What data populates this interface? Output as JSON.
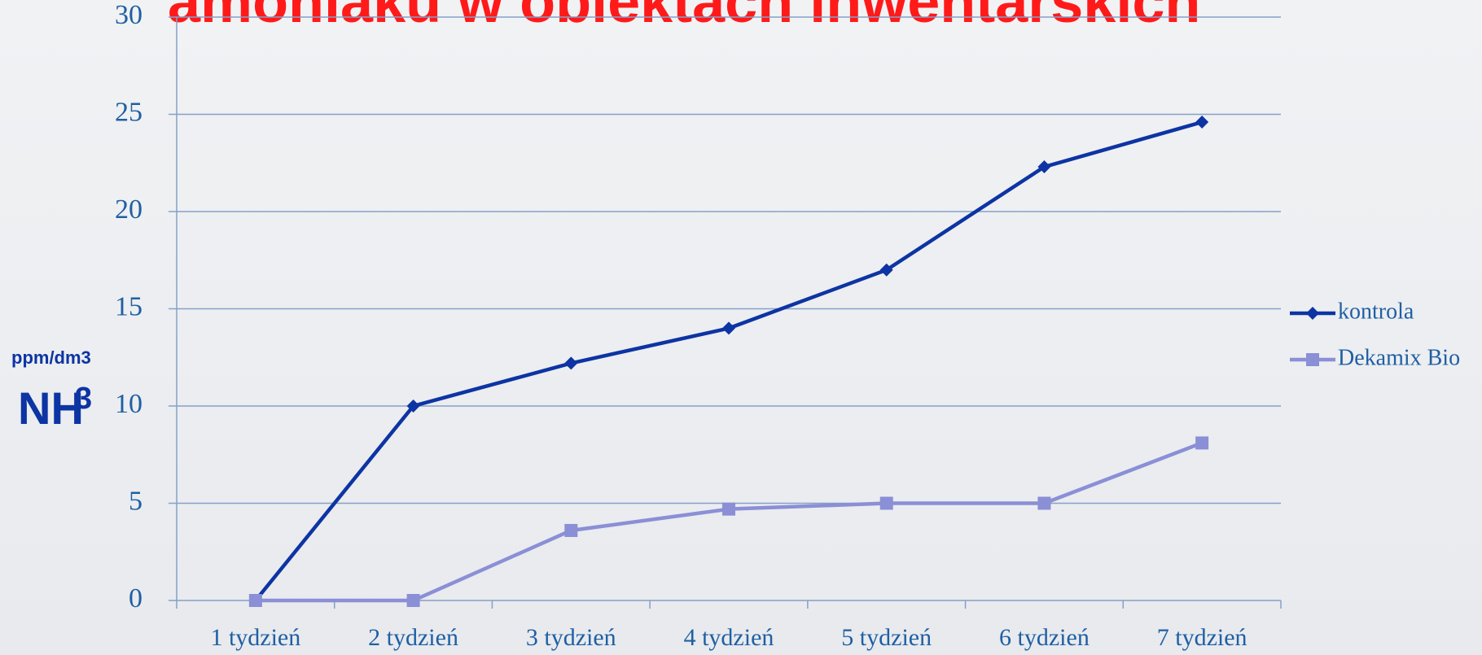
{
  "chart_data": {
    "type": "line",
    "title": "amoniaku w obiektach inwentarskich",
    "ylabel": "ppm/dm3",
    "unit": {
      "base": "NH",
      "sup": "3"
    },
    "categories": [
      "1 tydzień",
      "2 tydzień",
      "3 tydzień",
      "4 tydzień",
      "5 tydzień",
      "6 tydzień",
      "7 tydzień"
    ],
    "series": [
      {
        "name": "kontrola",
        "color": "#0d34a3",
        "marker": "diamond",
        "values": [
          0,
          10,
          12.2,
          14,
          17,
          22.3,
          24.6
        ]
      },
      {
        "name": "Dekamix Bio",
        "color": "#8a8fd6",
        "marker": "square",
        "values": [
          0,
          0,
          3.6,
          4.7,
          5,
          5,
          8.1
        ]
      }
    ],
    "ylim": [
      0,
      30
    ],
    "yticks": [
      0,
      5,
      10,
      15,
      20,
      25,
      30
    ],
    "grid": true,
    "legend": "right"
  }
}
